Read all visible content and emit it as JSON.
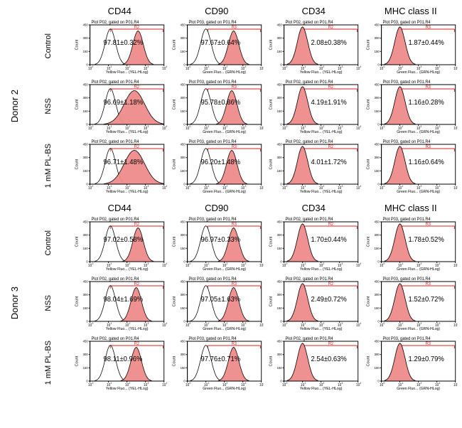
{
  "colors": {
    "hist_fill": "#ef8b8b",
    "hist_outline": "#000000",
    "gate": "#d22222",
    "unstained_outline": "#000000",
    "background": "#ffffff",
    "axis": "#000000"
  },
  "markers": [
    "CD44",
    "CD90",
    "CD34",
    "MHC class II"
  ],
  "yaxis_label": "Count",
  "yaxis_ticks": [
    "0",
    "150",
    "300",
    "450"
  ],
  "xaxis_ticks": [
    "10^0",
    "10^1",
    "10^2",
    "10^3",
    "10^4"
  ],
  "plot_title_prefix_p02": "Plot P02, gated on P01.R4",
  "plot_title_prefix_p03": "Plot P03, gated on P01.R4",
  "xaxis_label_yellow": "Yellow Fluo... (YEL-HLog)",
  "xaxis_label_green": "Green Fluo... (GRN-HLog)",
  "gate_names": {
    "r2": "R2",
    "r3": "R3"
  },
  "donors": [
    {
      "name": "Donor 2",
      "rows": [
        {
          "label": "Control",
          "cells": [
            {
              "plot": "P02",
              "gate": "R2",
              "mean": "97.81",
              "sd": "0.32",
              "channel": "yellow",
              "peak": 2.6,
              "pos": true,
              "ctrl_peak": 1.1
            },
            {
              "plot": "P03",
              "gate": "R3",
              "mean": "97.67",
              "sd": "0.64",
              "channel": "green",
              "peak": 2.5,
              "pos": true,
              "ctrl_peak": 1.0
            },
            {
              "plot": "P02",
              "gate": "R2",
              "mean": "2.08",
              "sd": "0.38",
              "channel": "yellow",
              "peak": 1.0,
              "pos": false,
              "ctrl_peak": 1.0
            },
            {
              "plot": "P03",
              "gate": "R3",
              "mean": "1.87",
              "sd": "0.44",
              "channel": "green",
              "peak": 1.0,
              "pos": false,
              "ctrl_peak": 1.0
            }
          ]
        },
        {
          "label": "NSS",
          "cells": [
            {
              "plot": "P02",
              "gate": "R2",
              "mean": "96.69",
              "sd": "1.18",
              "channel": "yellow",
              "peak": 2.4,
              "pos": true,
              "ctrl_peak": 1.1,
              "broad": true
            },
            {
              "plot": "P03",
              "gate": "R3",
              "mean": "95.78",
              "sd": "0.86",
              "channel": "green",
              "peak": 2.4,
              "pos": true,
              "ctrl_peak": 1.0
            },
            {
              "plot": "P02",
              "gate": "R2",
              "mean": "4.19",
              "sd": "1.91",
              "channel": "yellow",
              "peak": 1.0,
              "pos": false,
              "ctrl_peak": 1.0
            },
            {
              "plot": "P03",
              "gate": "R3",
              "mean": "1.16",
              "sd": "0.28",
              "channel": "green",
              "peak": 1.0,
              "pos": false,
              "ctrl_peak": 1.0
            }
          ]
        },
        {
          "label": "1 mM PL-BS",
          "cells": [
            {
              "plot": "P02",
              "gate": "R2",
              "mean": "96.71",
              "sd": "1.48",
              "channel": "yellow",
              "peak": 2.4,
              "pos": true,
              "ctrl_peak": 1.1,
              "broad": true
            },
            {
              "plot": "P03",
              "gate": "R3",
              "mean": "96.20",
              "sd": "1.48",
              "channel": "green",
              "peak": 2.4,
              "pos": true,
              "ctrl_peak": 1.0
            },
            {
              "plot": "P02",
              "gate": "R2",
              "mean": "4.01",
              "sd": "1.72",
              "channel": "yellow",
              "peak": 1.0,
              "pos": false,
              "ctrl_peak": 1.0
            },
            {
              "plot": "P03",
              "gate": "R3",
              "mean": "1.16",
              "sd": "0.64",
              "channel": "green",
              "peak": 1.0,
              "pos": false,
              "ctrl_peak": 1.0
            }
          ]
        }
      ]
    },
    {
      "name": "Donor 3",
      "rows": [
        {
          "label": "Control",
          "cells": [
            {
              "plot": "P02",
              "gate": "R2",
              "mean": "97.02",
              "sd": "0.58",
              "channel": "yellow",
              "peak": 2.6,
              "pos": true,
              "ctrl_peak": 1.1
            },
            {
              "plot": "P03",
              "gate": "R3",
              "mean": "96.97",
              "sd": "0.33",
              "channel": "green",
              "peak": 2.5,
              "pos": true,
              "ctrl_peak": 1.0
            },
            {
              "plot": "P02",
              "gate": "R2",
              "mean": "1.70",
              "sd": "0.44",
              "channel": "yellow",
              "peak": 1.0,
              "pos": false,
              "ctrl_peak": 1.0
            },
            {
              "plot": "P03",
              "gate": "R3",
              "mean": "1.78",
              "sd": "0.52",
              "channel": "green",
              "peak": 1.0,
              "pos": false,
              "ctrl_peak": 1.0
            }
          ]
        },
        {
          "label": "NSS",
          "cells": [
            {
              "plot": "P02",
              "gate": "R2",
              "mean": "98.04",
              "sd": "1.69",
              "channel": "yellow",
              "peak": 2.5,
              "pos": true,
              "ctrl_peak": 1.1
            },
            {
              "plot": "P03",
              "gate": "R3",
              "mean": "97.05",
              "sd": "1.63",
              "channel": "green",
              "peak": 2.5,
              "pos": true,
              "ctrl_peak": 1.0
            },
            {
              "plot": "P02",
              "gate": "R2",
              "mean": "2.49",
              "sd": "0.72",
              "channel": "yellow",
              "peak": 1.0,
              "pos": false,
              "ctrl_peak": 1.0
            },
            {
              "plot": "P03",
              "gate": "R3",
              "mean": "1.52",
              "sd": "0.72",
              "channel": "green",
              "peak": 1.0,
              "pos": false,
              "ctrl_peak": 1.0
            }
          ]
        },
        {
          "label": "1 mM PL-BS",
          "cells": [
            {
              "plot": "P02",
              "gate": "R2",
              "mean": "98.11",
              "sd": "0.96",
              "channel": "yellow",
              "peak": 2.5,
              "pos": true,
              "ctrl_peak": 1.1
            },
            {
              "plot": "P03",
              "gate": "R3",
              "mean": "97.76",
              "sd": "0.71",
              "channel": "green",
              "peak": 2.5,
              "pos": true,
              "ctrl_peak": 1.0
            },
            {
              "plot": "P02",
              "gate": "R2",
              "mean": "2.54",
              "sd": "0.63",
              "channel": "yellow",
              "peak": 1.0,
              "pos": false,
              "ctrl_peak": 1.0
            },
            {
              "plot": "P03",
              "gate": "R3",
              "mean": "1.29",
              "sd": "0.79",
              "channel": "green",
              "peak": 1.0,
              "pos": false,
              "ctrl_peak": 1.0
            }
          ]
        }
      ]
    }
  ]
}
